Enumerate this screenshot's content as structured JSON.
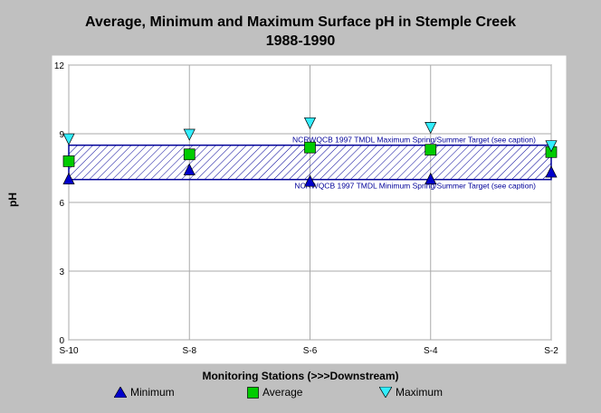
{
  "chart_data": {
    "type": "scatter",
    "title": "Average, Minimum and Maximum Surface pH in Stemple Creek",
    "subtitle": "1988-1990",
    "xlabel": "Monitoring Stations (>>>Downstream)",
    "ylabel": "pH",
    "ylim": [
      0,
      12
    ],
    "yticks": [
      "0",
      "3",
      "6",
      "9",
      "12"
    ],
    "categories": [
      "S-10",
      "S-8",
      "S-6",
      "S-4",
      "S-2"
    ],
    "grid": true,
    "legend_position": "bottom",
    "series": [
      {
        "name": "Minimum",
        "marker": "triangle-up",
        "color": "#0000cc",
        "values": [
          7.0,
          7.4,
          6.9,
          7.0,
          7.3
        ]
      },
      {
        "name": "Average",
        "marker": "square",
        "color": "#00cc00",
        "values": [
          7.8,
          8.1,
          8.4,
          8.3,
          8.2
        ]
      },
      {
        "name": "Maximum",
        "marker": "triangle-down",
        "color": "#33eeff",
        "values": [
          8.8,
          9.0,
          9.5,
          9.3,
          8.5
        ]
      }
    ],
    "target_band": {
      "min": 7.0,
      "max": 8.5,
      "upper_label": "NCRWQCB 1997 TMDL Maximum Spring/Summer Target (see caption)",
      "lower_label": "NCRWQCB 1997 TMDL Minimum Spring/Summer Target (see caption)",
      "color": "#000099"
    }
  }
}
